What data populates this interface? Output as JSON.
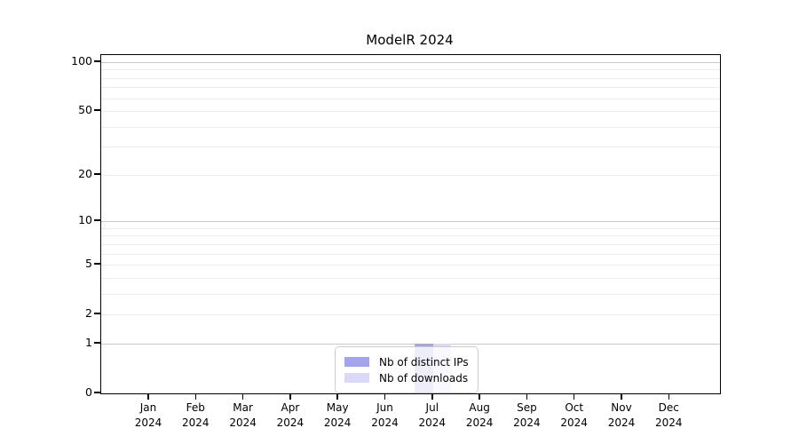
{
  "chart_data": {
    "type": "bar",
    "title": "ModelR 2024",
    "categories": [
      "Jan 2024",
      "Feb 2024",
      "Mar 2024",
      "Apr 2024",
      "May 2024",
      "Jun 2024",
      "Jul 2024",
      "Aug 2024",
      "Sep 2024",
      "Oct 2024",
      "Nov 2024",
      "Dec 2024"
    ],
    "series": [
      {
        "name": "Nb of distinct IPs",
        "color": "#a3a3ee",
        "values": [
          0,
          0,
          0,
          0,
          0,
          0,
          1,
          0,
          0,
          0,
          0,
          0
        ]
      },
      {
        "name": "Nb of downloads",
        "color": "#dadaf8",
        "values": [
          0,
          0,
          0,
          0,
          0,
          0,
          1,
          0,
          0,
          0,
          0,
          0
        ]
      }
    ],
    "xlabel": "",
    "ylabel": "",
    "y_axis": {
      "scale": "log1p",
      "tick_values": [
        0,
        1,
        2,
        5,
        10,
        20,
        50,
        100
      ],
      "major_gridlines": [
        1,
        10,
        100
      ],
      "minor_gridlines": [
        2,
        3,
        4,
        5,
        6,
        7,
        8,
        9,
        20,
        30,
        40,
        50,
        60,
        70,
        80,
        90
      ],
      "ylim": [
        0,
        113
      ]
    },
    "grid": "horizontal",
    "legend": {
      "position": "lower center",
      "entries": [
        "Nb of distinct IPs",
        "Nb of downloads"
      ]
    }
  },
  "colors": {
    "axis": "#000000",
    "major_grid": "#c9c9c9",
    "minor_grid": "#ececec",
    "legend_border": "#cccccc",
    "text": "#000000"
  }
}
